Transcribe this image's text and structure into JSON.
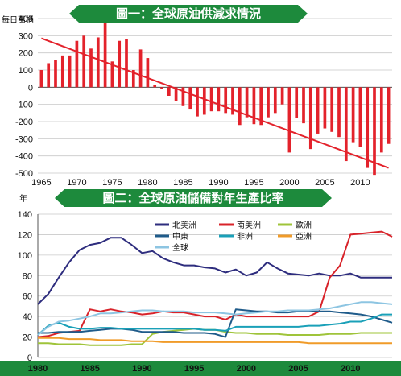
{
  "chart_data": [
    {
      "type": "bar",
      "title": "圖一：全球原油供減求情況",
      "ylabel": "每日萬桶",
      "xlim": [
        1965,
        2014
      ],
      "ylim": [
        -500,
        400
      ],
      "y_ticks": [
        400,
        300,
        200,
        100,
        0,
        -100,
        -200,
        -300,
        -400,
        -500
      ],
      "x_ticks": [
        1965,
        1970,
        1975,
        1980,
        1985,
        1990,
        1995,
        2000,
        2005,
        2010
      ],
      "grid": true,
      "bar_color": "#e3222b",
      "trend_color": "#e3222b",
      "trend": {
        "x": [
          1965,
          2014
        ],
        "y": [
          285,
          -470
        ]
      },
      "x": [
        1965,
        1966,
        1967,
        1968,
        1969,
        1970,
        1971,
        1972,
        1973,
        1974,
        1975,
        1976,
        1977,
        1978,
        1979,
        1980,
        1981,
        1982,
        1983,
        1984,
        1985,
        1986,
        1987,
        1988,
        1989,
        1990,
        1991,
        1992,
        1993,
        1994,
        1995,
        1996,
        1997,
        1998,
        1999,
        2000,
        2001,
        2002,
        2003,
        2004,
        2005,
        2006,
        2007,
        2008,
        2009,
        2010,
        2011,
        2012,
        2013,
        2014
      ],
      "values": [
        100,
        140,
        160,
        185,
        185,
        270,
        300,
        225,
        290,
        390,
        150,
        270,
        280,
        100,
        220,
        170,
        15,
        -10,
        -50,
        -80,
        -110,
        -130,
        -170,
        -160,
        -140,
        -140,
        -150,
        -160,
        -220,
        -175,
        -215,
        -220,
        -175,
        -150,
        -100,
        -380,
        -180,
        -210,
        -360,
        -270,
        -240,
        -260,
        -290,
        -430,
        -320,
        -350,
        -470,
        -510,
        -380,
        -330
      ]
    },
    {
      "type": "line",
      "title": "圖二：全球原油儲備對年生產比率",
      "ylabel": "年",
      "xlim": [
        1980,
        2014
      ],
      "ylim": [
        0,
        140
      ],
      "y_ticks": [
        0,
        20,
        40,
        60,
        80,
        100,
        120,
        140
      ],
      "x_ticks": [
        1980,
        1985,
        1990,
        1995,
        2000,
        2005,
        2010
      ],
      "grid": true,
      "legend_position": "top-center",
      "x": [
        1980,
        1981,
        1982,
        1983,
        1984,
        1985,
        1986,
        1987,
        1988,
        1989,
        1990,
        1991,
        1992,
        1993,
        1994,
        1995,
        1996,
        1997,
        1998,
        1999,
        2000,
        2001,
        2002,
        2003,
        2004,
        2005,
        2006,
        2007,
        2008,
        2009,
        2010,
        2011,
        2012,
        2013,
        2014
      ],
      "series": [
        {
          "name": "北美洲",
          "color": "#2e2d7e",
          "values": [
            52,
            62,
            78,
            93,
            105,
            110,
            112,
            117,
            117,
            110,
            102,
            104,
            97,
            93,
            90,
            90,
            88,
            87,
            83,
            86,
            80,
            83,
            93,
            87,
            82,
            81,
            80,
            82,
            80,
            80,
            82,
            78,
            78,
            78,
            78
          ]
        },
        {
          "name": "南美洲",
          "color": "#d8232a",
          "values": [
            20,
            21,
            24,
            25,
            26,
            47,
            45,
            47,
            45,
            44,
            42,
            43,
            45,
            44,
            44,
            42,
            40,
            40,
            37,
            42,
            40,
            40,
            40,
            40,
            40,
            40,
            40,
            45,
            78,
            90,
            120,
            121,
            122,
            123,
            118
          ]
        },
        {
          "name": "歐洲",
          "color": "#9fc43a",
          "values": [
            14,
            14,
            13,
            13,
            13,
            12,
            12,
            12,
            12,
            13,
            13,
            23,
            25,
            26,
            27,
            28,
            27,
            27,
            25,
            24,
            24,
            23,
            23,
            23,
            22,
            22,
            22,
            22,
            23,
            23,
            23,
            24,
            24,
            24,
            24
          ]
        },
        {
          "name": "中東",
          "color": "#1f5b8a",
          "values": [
            24,
            24,
            25,
            25,
            25,
            26,
            27,
            28,
            28,
            27,
            25,
            25,
            25,
            25,
            24,
            24,
            24,
            23,
            20,
            47,
            46,
            45,
            45,
            44,
            44,
            45,
            45,
            45,
            45,
            44,
            43,
            42,
            40,
            37,
            34
          ]
        },
        {
          "name": "非洲",
          "color": "#1aa0b8",
          "values": [
            22,
            31,
            34,
            30,
            28,
            28,
            29,
            29,
            28,
            28,
            28,
            28,
            28,
            28,
            28,
            28,
            27,
            27,
            26,
            30,
            30,
            30,
            30,
            30,
            30,
            30,
            31,
            31,
            32,
            33,
            35,
            35,
            38,
            42,
            42
          ]
        },
        {
          "name": "亞洲",
          "color": "#f09b29",
          "values": [
            19,
            19,
            19,
            18,
            18,
            18,
            17,
            17,
            17,
            16,
            16,
            16,
            15,
            15,
            15,
            15,
            15,
            15,
            15,
            15,
            15,
            15,
            15,
            15,
            15,
            15,
            14,
            14,
            14,
            14,
            14,
            14,
            14,
            14,
            14
          ]
        },
        {
          "name": "全球",
          "color": "#8dc5e2",
          "values": [
            22,
            30,
            35,
            36,
            38,
            40,
            43,
            43,
            44,
            45,
            46,
            46,
            45,
            45,
            45,
            44,
            44,
            44,
            43,
            42,
            43,
            44,
            45,
            45,
            46,
            46,
            46,
            47,
            48,
            50,
            52,
            54,
            54,
            53,
            52
          ]
        }
      ]
    }
  ]
}
